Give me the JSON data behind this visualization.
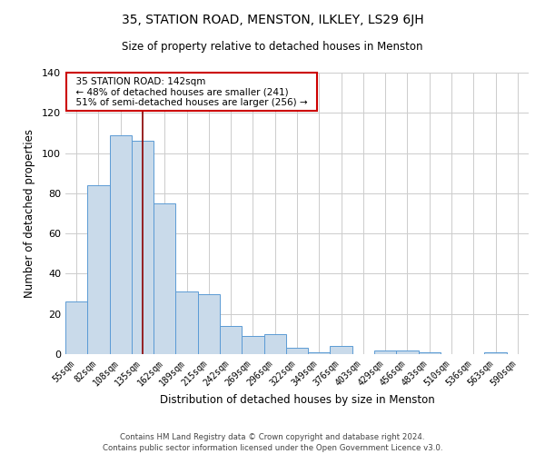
{
  "title": "35, STATION ROAD, MENSTON, ILKLEY, LS29 6JH",
  "subtitle": "Size of property relative to detached houses in Menston",
  "xlabel": "Distribution of detached houses by size in Menston",
  "ylabel": "Number of detached properties",
  "categories": [
    "55sqm",
    "82sqm",
    "108sqm",
    "135sqm",
    "162sqm",
    "189sqm",
    "215sqm",
    "242sqm",
    "269sqm",
    "296sqm",
    "322sqm",
    "349sqm",
    "376sqm",
    "403sqm",
    "429sqm",
    "456sqm",
    "483sqm",
    "510sqm",
    "536sqm",
    "563sqm",
    "590sqm"
  ],
  "values": [
    26,
    84,
    109,
    106,
    75,
    31,
    30,
    14,
    9,
    10,
    3,
    1,
    4,
    0,
    2,
    2,
    1,
    0,
    0,
    1,
    0
  ],
  "bar_color": "#c9daea",
  "bar_edge_color": "#5b9bd5",
  "vline_x": 3,
  "vline_color": "#8b0000",
  "ylim": [
    0,
    140
  ],
  "yticks": [
    0,
    20,
    40,
    60,
    80,
    100,
    120,
    140
  ],
  "annotation_title": "35 STATION ROAD: 142sqm",
  "annotation_line1": "← 48% of detached houses are smaller (241)",
  "annotation_line2": "51% of semi-detached houses are larger (256) →",
  "annotation_box_color": "#ffffff",
  "annotation_box_edge": "#cc0000",
  "footer1": "Contains HM Land Registry data © Crown copyright and database right 2024.",
  "footer2": "Contains public sector information licensed under the Open Government Licence v3.0.",
  "bg_color": "#ffffff",
  "grid_color": "#cccccc"
}
